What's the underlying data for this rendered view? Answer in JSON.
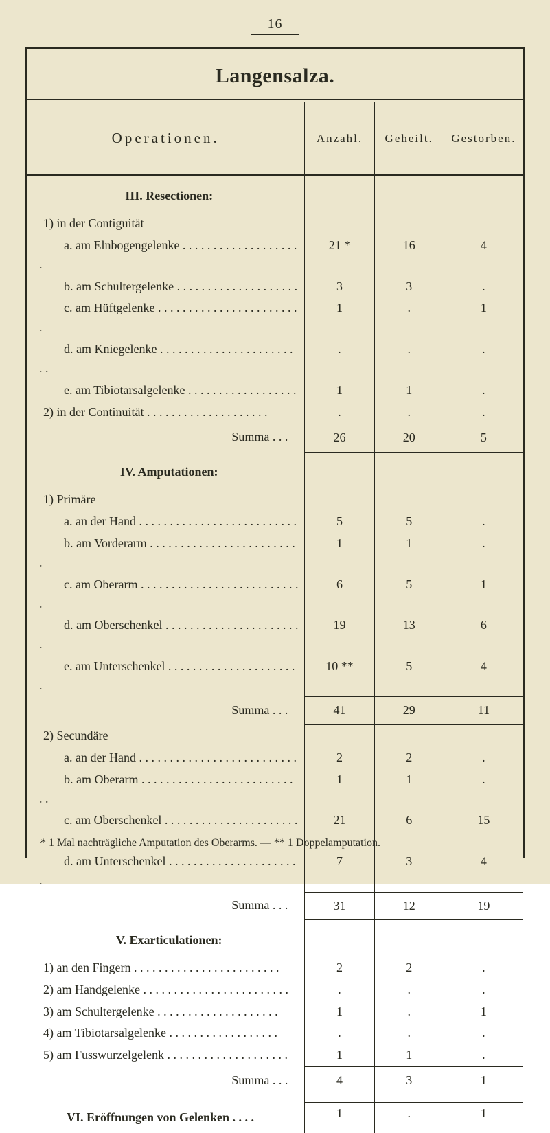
{
  "page_number": "16",
  "title": "Langensalza.",
  "columns": {
    "op": "Operationen.",
    "c1": "Anzahl.",
    "c2": "Geheilt.",
    "c3": "Gestorben."
  },
  "sections": {
    "III": {
      "heading": "III. Resectionen:",
      "group1_label": "1) in der Contiguität",
      "rows1": [
        {
          "label": "a. am Elnbogengelenke",
          "c1": "21 *",
          "c2": "16",
          "c3": "4"
        },
        {
          "label": "b. am Schultergelenke",
          "c1": "3",
          "c2": "3",
          "c3": "."
        },
        {
          "label": "c. am Hüftgelenke",
          "c1": "1",
          "c2": ".",
          "c3": "1"
        },
        {
          "label": "d. am Kniegelenke",
          "c1": ".",
          "c2": ".",
          "c3": "."
        },
        {
          "label": "e. am Tibiotarsalgelenke",
          "c1": "1",
          "c2": "1",
          "c3": "."
        }
      ],
      "group2_label": "2) in der Continuität",
      "group2_vals": {
        "c1": ".",
        "c2": ".",
        "c3": "."
      },
      "summa": {
        "label": "Summa . . .",
        "c1": "26",
        "c2": "20",
        "c3": "5"
      }
    },
    "IV": {
      "heading": "IV. Amputationen:",
      "group1_label": "1) Primäre",
      "rows1": [
        {
          "label": "a. an der Hand",
          "c1": "5",
          "c2": "5",
          "c3": "."
        },
        {
          "label": "b. am Vorderarm",
          "c1": "1",
          "c2": "1",
          "c3": "."
        },
        {
          "label": "c. am Oberarm",
          "c1": "6",
          "c2": "5",
          "c3": "1"
        },
        {
          "label": "d. am Oberschenkel",
          "c1": "19",
          "c2": "13",
          "c3": "6"
        },
        {
          "label": "e. am Unterschenkel",
          "c1": "10 **",
          "c2": "5",
          "c3": "4"
        }
      ],
      "summa1": {
        "label": "Summa . . .",
        "c1": "41",
        "c2": "29",
        "c3": "11"
      },
      "group2_label": "2) Secundäre",
      "rows2": [
        {
          "label": "a. an der Hand",
          "c1": "2",
          "c2": "2",
          "c3": "."
        },
        {
          "label": "b. am Oberarm",
          "c1": "1",
          "c2": "1",
          "c3": "."
        },
        {
          "label": "c. am Oberschenkel",
          "c1": "21",
          "c2": "6",
          "c3": "15"
        },
        {
          "label": "d. am Unterschenkel",
          "c1": "7",
          "c2": "3",
          "c3": "4"
        }
      ],
      "summa2": {
        "label": "Summa . . .",
        "c1": "31",
        "c2": "12",
        "c3": "19"
      }
    },
    "V": {
      "heading": "V. Exarticulationen:",
      "rows": [
        {
          "label": "1) an den Fingern",
          "c1": "2",
          "c2": "2",
          "c3": "."
        },
        {
          "label": "2) am Handgelenke",
          "c1": ".",
          "c2": ".",
          "c3": "."
        },
        {
          "label": "3) am Schultergelenke",
          "c1": "1",
          "c2": ".",
          "c3": "1"
        },
        {
          "label": "4) am Tibiotarsalgelenke",
          "c1": ".",
          "c2": ".",
          "c3": "."
        },
        {
          "label": "5) am Fusswurzelgelenk",
          "c1": "1",
          "c2": "1",
          "c3": "."
        }
      ],
      "summa": {
        "label": "Summa . . .",
        "c1": "4",
        "c2": "3",
        "c3": "1"
      }
    },
    "VI": {
      "label": "VI. Eröffnungen von Gelenken . . . .",
      "c1": "1",
      "c2": ".",
      "c3": "1"
    }
  },
  "footnote": "* 1 Mal nachträgliche Amputation des Oberarms. —   ** 1 Doppelamputation.",
  "style": {
    "bg": "#ece6cd",
    "ink": "#2a2a20",
    "font": "Times New Roman"
  }
}
